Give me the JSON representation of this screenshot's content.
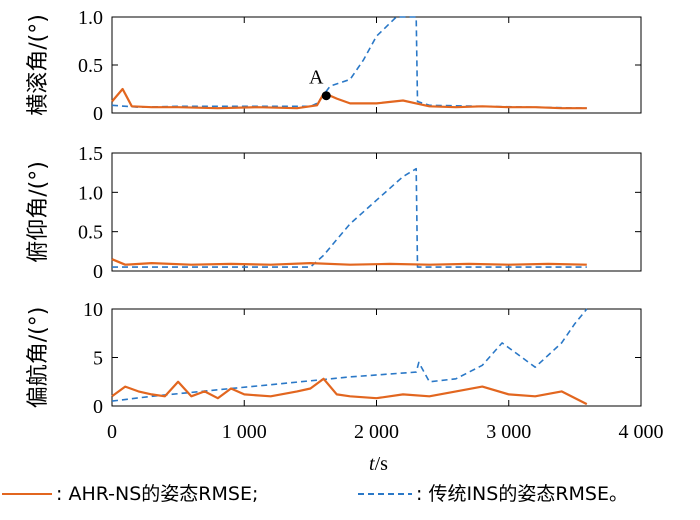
{
  "chart_data": {
    "type": "line",
    "xlabel_italic": "t",
    "xlabel_unit": "/s",
    "xlim": [
      0,
      4000
    ],
    "xticks": [
      "0",
      "1 000",
      "2 000",
      "3 000",
      "4 000"
    ],
    "legend": {
      "placement": "bottom",
      "entries": [
        {
          "style": "solid",
          "color": "#e2661f",
          "label": ": AHR-NS的姿态RMSE;"
        },
        {
          "style": "dashed",
          "color": "#2a78c7",
          "label": ": 传统INS的姿态RMSE。"
        }
      ]
    },
    "panels": [
      {
        "ylabel": "横滚角/(°)",
        "ylim": [
          0,
          1.0
        ],
        "yticks": [
          "0",
          "0.5",
          "1.0"
        ],
        "annotation": {
          "text": "A",
          "x": 1620,
          "y": 0.18
        },
        "series": [
          {
            "style": "solid",
            "color": "#e2661f",
            "x": [
              0,
              80,
              150,
              300,
              500,
              800,
              1100,
              1400,
              1550,
              1600,
              1650,
              1700,
              1800,
              2000,
              2200,
              2300,
              2400,
              2600,
              2800,
              3000,
              3200,
              3400,
              3590
            ],
            "y": [
              0.12,
              0.25,
              0.07,
              0.06,
              0.06,
              0.05,
              0.06,
              0.05,
              0.08,
              0.2,
              0.18,
              0.15,
              0.1,
              0.1,
              0.13,
              0.1,
              0.07,
              0.06,
              0.07,
              0.06,
              0.06,
              0.05,
              0.05
            ]
          },
          {
            "style": "dashed",
            "color": "#2a78c7",
            "x": [
              0,
              200,
              500,
              1000,
              1500,
              1550,
              1650,
              1800,
              1900,
              2000,
              2150,
              2300,
              2310,
              2400,
              2800,
              3200,
              3590
            ],
            "y": [
              0.08,
              0.06,
              0.07,
              0.07,
              0.07,
              0.1,
              0.28,
              0.35,
              0.55,
              0.8,
              1.0,
              1.0,
              0.12,
              0.08,
              0.07,
              0.06,
              0.05
            ]
          }
        ]
      },
      {
        "ylabel": "俯仰角/(°)",
        "ylim": [
          0,
          1.5
        ],
        "yticks": [
          "0",
          "0.5",
          "1.0",
          "1.5"
        ],
        "series": [
          {
            "style": "solid",
            "color": "#e2661f",
            "x": [
              0,
              100,
              300,
              600,
              900,
              1200,
              1500,
              1800,
              2100,
              2400,
              2700,
              3000,
              3300,
              3590
            ],
            "y": [
              0.15,
              0.08,
              0.1,
              0.08,
              0.09,
              0.08,
              0.1,
              0.08,
              0.09,
              0.08,
              0.09,
              0.08,
              0.09,
              0.08
            ]
          },
          {
            "style": "dashed",
            "color": "#2a78c7",
            "x": [
              0,
              500,
              1000,
              1500,
              1600,
              1700,
              1800,
              2000,
              2200,
              2300,
              2310,
              2400,
              3000,
              3590
            ],
            "y": [
              0.05,
              0.05,
              0.05,
              0.05,
              0.2,
              0.4,
              0.6,
              0.9,
              1.2,
              1.3,
              0.05,
              0.05,
              0.05,
              0.05
            ]
          }
        ]
      },
      {
        "ylabel": "偏航角/(°)",
        "ylim": [
          0,
          10
        ],
        "yticks": [
          "0",
          "5",
          "10"
        ],
        "series": [
          {
            "style": "solid",
            "color": "#e2661f",
            "x": [
              0,
              100,
              200,
              300,
              400,
              500,
              600,
              700,
              800,
              900,
              1000,
              1200,
              1400,
              1500,
              1600,
              1700,
              1800,
              2000,
              2200,
              2400,
              2600,
              2800,
              3000,
              3200,
              3400,
              3590
            ],
            "y": [
              1.0,
              2.0,
              1.5,
              1.2,
              1.0,
              2.5,
              1.0,
              1.5,
              0.8,
              1.8,
              1.2,
              1.0,
              1.5,
              1.8,
              2.8,
              1.2,
              1.0,
              0.8,
              1.2,
              1.0,
              1.5,
              2.0,
              1.2,
              1.0,
              1.5,
              0.2
            ]
          },
          {
            "style": "dashed",
            "color": "#2a78c7",
            "x": [
              0,
              300,
              600,
              900,
              1200,
              1500,
              1800,
              2100,
              2300,
              2320,
              2400,
              2600,
              2800,
              2950,
              3050,
              3200,
              3400,
              3500,
              3590
            ],
            "y": [
              0.5,
              1.0,
              1.4,
              1.8,
              2.2,
              2.6,
              3.0,
              3.3,
              3.5,
              4.5,
              2.5,
              2.8,
              4.2,
              6.5,
              5.5,
              4.0,
              6.5,
              8.5,
              10.0
            ]
          }
        ]
      }
    ]
  }
}
